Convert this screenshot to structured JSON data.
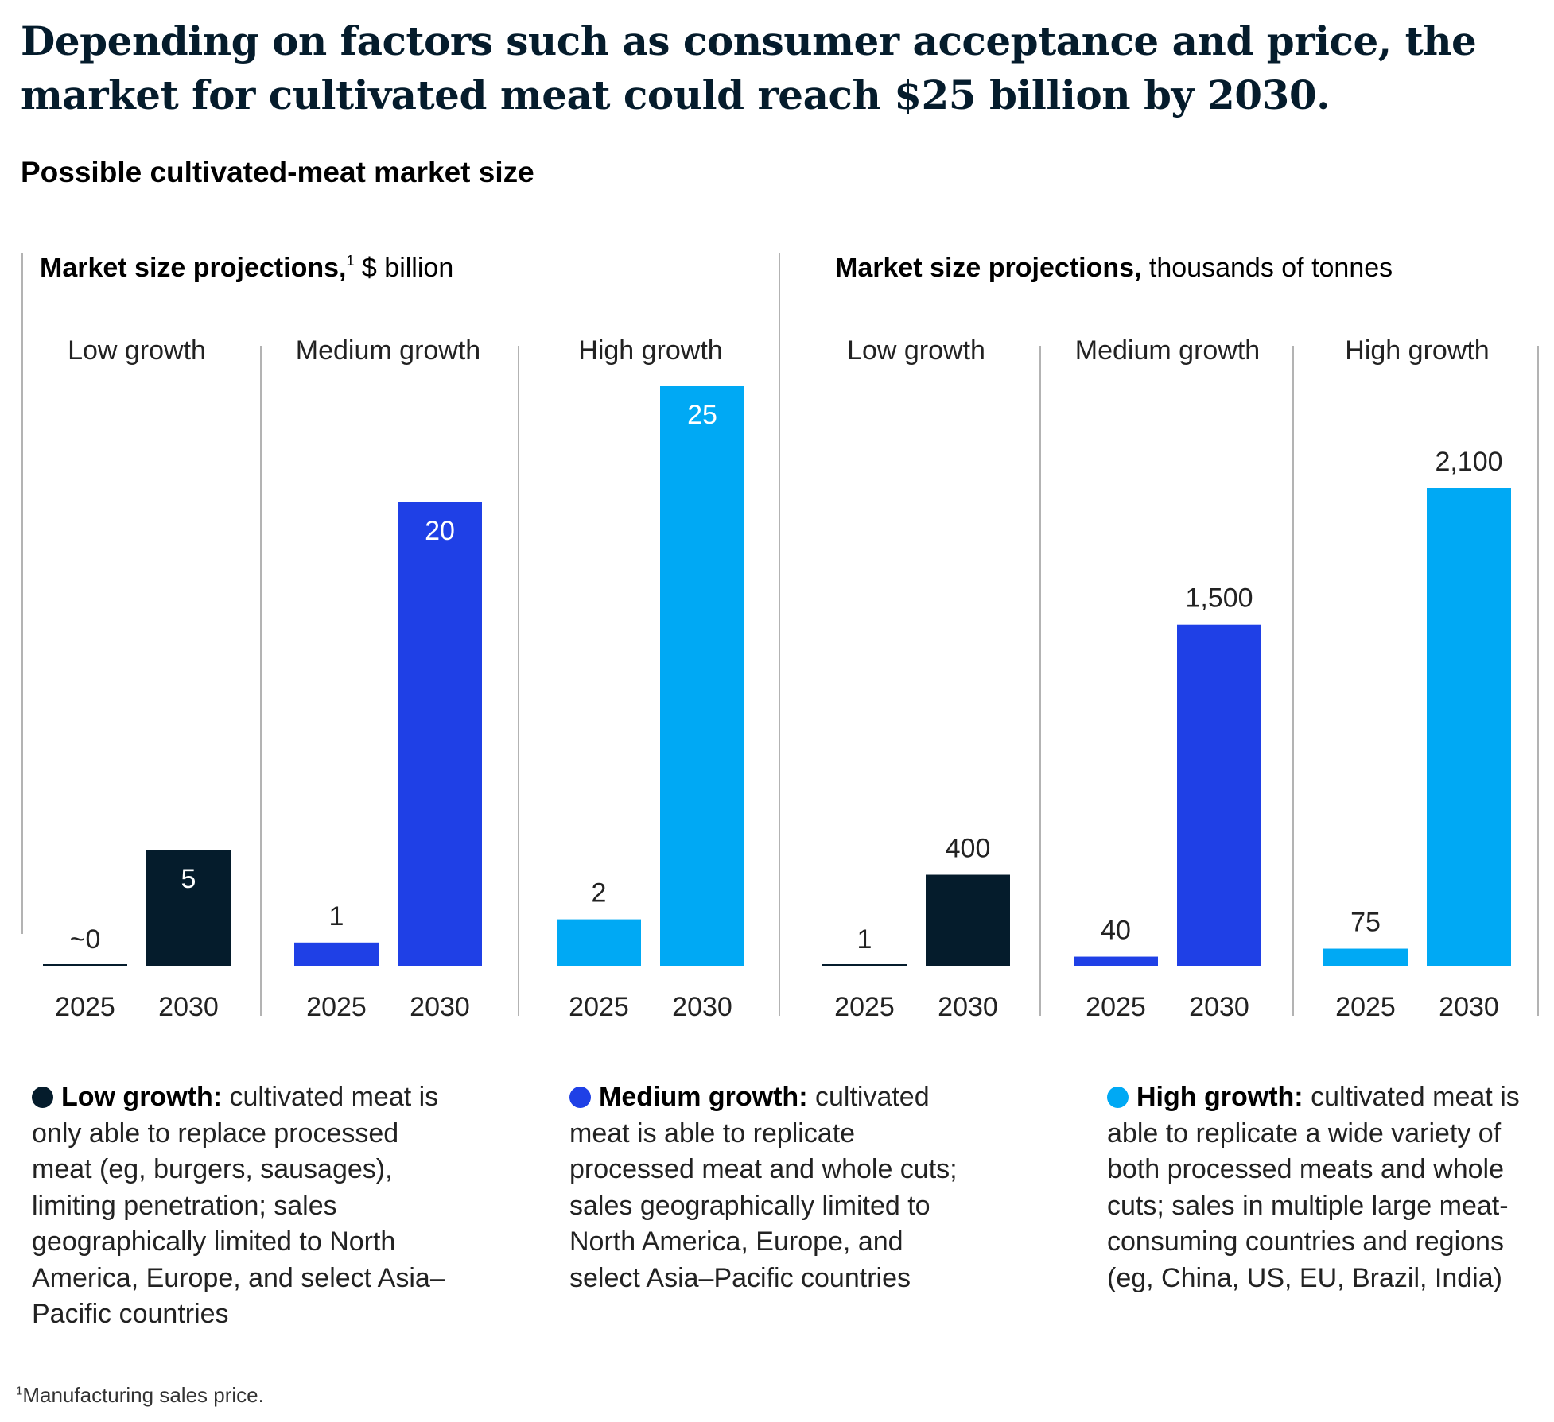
{
  "headline": "Depending on factors such as consumer acceptance and price, the market for cultivated meat could reach $25 billion by 2030.",
  "subtitle": "Possible cultivated-meat market size",
  "colors": {
    "low": "#051c2c",
    "medium": "#1f40e6",
    "high": "#00a9f4",
    "divider": "#b3b3b3",
    "text": "#222222"
  },
  "chart_data": [
    {
      "type": "bar",
      "title_bold": "Market size projections,",
      "title_superscript": "1",
      "title_unit": " $ billion",
      "groups": [
        {
          "name": "Low growth",
          "color_key": "low",
          "categories": [
            "2025",
            "2030"
          ],
          "values": [
            0,
            5
          ],
          "labels": [
            "~0",
            "5"
          ]
        },
        {
          "name": "Medium growth",
          "color_key": "medium",
          "categories": [
            "2025",
            "2030"
          ],
          "values": [
            1,
            20
          ],
          "labels": [
            "1",
            "20"
          ]
        },
        {
          "name": "High growth",
          "color_key": "high",
          "categories": [
            "2025",
            "2030"
          ],
          "values": [
            2,
            25
          ],
          "labels": [
            "2",
            "25"
          ]
        }
      ],
      "ylim": [
        0,
        25
      ]
    },
    {
      "type": "bar",
      "title_bold": "Market size projections,",
      "title_superscript": "",
      "title_unit": " thousands of tonnes",
      "groups": [
        {
          "name": "Low growth",
          "color_key": "low",
          "categories": [
            "2025",
            "2030"
          ],
          "values": [
            1,
            400
          ],
          "labels": [
            "1",
            "400"
          ]
        },
        {
          "name": "Medium growth",
          "color_key": "medium",
          "categories": [
            "2025",
            "2030"
          ],
          "values": [
            40,
            1500
          ],
          "labels": [
            "40",
            "1,500"
          ]
        },
        {
          "name": "High growth",
          "color_key": "high",
          "categories": [
            "2025",
            "2030"
          ],
          "values": [
            75,
            2100
          ],
          "labels": [
            "75",
            "2,100"
          ]
        }
      ],
      "ylim": [
        0,
        2500
      ]
    }
  ],
  "legend": [
    {
      "name": "Low growth:",
      "color_key": "low",
      "text": " cultivated meat is only able to replace processed meat (eg, burgers, sausages), limiting penetration; sales geographically limited to North America, Europe, and select Asia–Pacific countries"
    },
    {
      "name": "Medium growth:",
      "color_key": "medium",
      "text": " cultivated meat is able to replicate processed meat and whole cuts; sales geographically limited to North America, Europe, and select Asia–Pacific countries"
    },
    {
      "name": "High growth:",
      "color_key": "high",
      "text": " cultivated meat is able to replicate a wide variety of both processed meats and whole cuts; sales in multiple large meat-consuming countries and regions (eg, China, US, EU, Brazil, India)"
    }
  ],
  "footnote": {
    "mark": "1",
    "text": "Manufacturing sales price."
  }
}
